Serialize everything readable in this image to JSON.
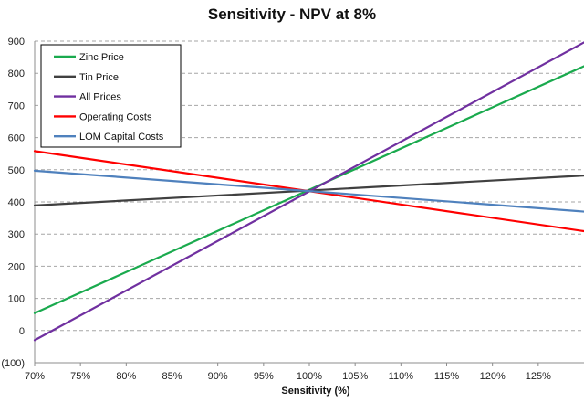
{
  "chart_data": {
    "type": "line",
    "title": "Sensitivity - NPV at 8%",
    "xlabel": "Sensitivity (%)",
    "ylabel": "",
    "x": [
      70,
      130
    ],
    "x_ticks": [
      "70%",
      "75%",
      "80%",
      "85%",
      "90%",
      "95%",
      "100%",
      "105%",
      "110%",
      "115%",
      "120%",
      "125%"
    ],
    "x_tick_values": [
      70,
      75,
      80,
      85,
      90,
      95,
      100,
      105,
      110,
      115,
      120,
      125
    ],
    "xlim": [
      70,
      130
    ],
    "y_ticks": [
      "900",
      "800",
      "700",
      "600",
      "500",
      "400",
      "300",
      "200",
      "100",
      "0",
      "(100)"
    ],
    "y_tick_values": [
      900,
      800,
      700,
      600,
      500,
      400,
      300,
      200,
      100,
      0,
      -100
    ],
    "ylim": [
      -100,
      900
    ],
    "grid": "horizontal dashed",
    "legend_position": "top-left",
    "series": [
      {
        "name": "Zinc Price",
        "color": "#1aaa4e",
        "values": [
          54,
          822
        ]
      },
      {
        "name": "Tin Price",
        "color": "#404040",
        "values": [
          389,
          482
        ]
      },
      {
        "name": "All Prices",
        "color": "#7030a0",
        "values": [
          -30,
          896
        ]
      },
      {
        "name": "Operating Costs",
        "color": "#ff0000",
        "values": [
          558,
          309
        ]
      },
      {
        "name": "LOM Capital Costs",
        "color": "#4f81bd",
        "values": [
          497,
          370
        ]
      }
    ]
  }
}
